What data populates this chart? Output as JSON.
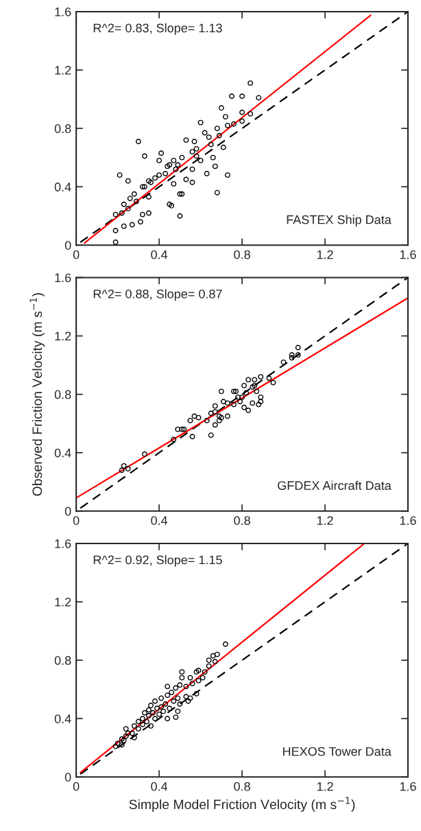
{
  "chart_data": [
    {
      "type": "scatter",
      "annotations": [
        "R^2= 0.83, Slope= 1.13",
        "FASTEX Ship Data"
      ],
      "xlim": [
        0,
        1.6
      ],
      "ylim": [
        0,
        1.6
      ],
      "xticks": [
        0,
        0.4,
        0.8,
        1.2,
        1.6
      ],
      "yticks": [
        0,
        0.4,
        0.8,
        1.2,
        1.6
      ],
      "grid": false,
      "legend": false,
      "series": [
        {
          "marker": "circle",
          "color": "#000000",
          "x": [
            0.84,
            0.75,
            0.8,
            0.88,
            0.7,
            0.8,
            0.84,
            0.6,
            0.72,
            0.8,
            0.3,
            0.68,
            0.62,
            0.71,
            0.53,
            0.57,
            0.33,
            0.41,
            0.4,
            0.47,
            0.51,
            0.6,
            0.66,
            0.67,
            0.73,
            0.68,
            0.63,
            0.56,
            0.56,
            0.53,
            0.47,
            0.44,
            0.51,
            0.5,
            0.45,
            0.46,
            0.5,
            0.21,
            0.25,
            0.4,
            0.38,
            0.35,
            0.32,
            0.28,
            0.35,
            0.29,
            0.26,
            0.23,
            0.35,
            0.32,
            0.31,
            0.27,
            0.23,
            0.19,
            0.19,
            0.19,
            0.22,
            0.25,
            0.33,
            0.36,
            0.43,
            0.45,
            0.48,
            0.56,
            0.58,
            0.65,
            0.69,
            0.73,
            0.76,
            0.58,
            0.64,
            0.49
          ],
          "values": [
            1.11,
            1.02,
            1.02,
            1.01,
            0.94,
            0.91,
            0.9,
            0.84,
            0.88,
            0.85,
            0.71,
            0.8,
            0.77,
            0.67,
            0.72,
            0.71,
            0.61,
            0.63,
            0.58,
            0.58,
            0.6,
            0.58,
            0.6,
            0.54,
            0.48,
            0.36,
            0.49,
            0.52,
            0.43,
            0.45,
            0.42,
            0.54,
            0.35,
            0.35,
            0.28,
            0.27,
            0.2,
            0.48,
            0.44,
            0.48,
            0.46,
            0.44,
            0.4,
            0.35,
            0.33,
            0.3,
            0.32,
            0.28,
            0.22,
            0.21,
            0.16,
            0.14,
            0.13,
            0.1,
            0.02,
            0.21,
            0.22,
            0.25,
            0.4,
            0.43,
            0.49,
            0.55,
            0.52,
            0.64,
            0.66,
            0.69,
            0.75,
            0.82,
            0.83,
            0.61,
            0.74,
            0.55
          ]
        },
        {
          "type": "line",
          "line_style": "dashed",
          "color": "#000000",
          "x": [
            0.02,
            1.6
          ],
          "values": [
            0.02,
            1.6
          ]
        },
        {
          "type": "line",
          "line_style": "solid",
          "color": "#ff0000",
          "x": [
            0.04,
            1.42
          ],
          "values": [
            0.015,
            1.575
          ]
        }
      ]
    },
    {
      "type": "scatter",
      "annotations": [
        "R^2= 0.88, Slope= 0.87",
        "GFDEX Aircraft Data"
      ],
      "ylabel": "Observed Friction Velocity (m s$^{−1}$)",
      "xlim": [
        0,
        1.6
      ],
      "ylim": [
        0,
        1.6
      ],
      "xticks": [
        0,
        0.4,
        0.8,
        1.2,
        1.6
      ],
      "yticks": [
        0,
        0.4,
        0.8,
        1.2,
        1.6
      ],
      "grid": false,
      "legend": false,
      "series": [
        {
          "marker": "circle",
          "color": "#000000",
          "x": [
            1.07,
            1.04,
            1.07,
            1.04,
            1.0,
            0.93,
            0.95,
            0.89,
            0.83,
            0.86,
            0.81,
            0.85,
            0.87,
            0.89,
            0.89,
            0.88,
            0.85,
            0.83,
            0.81,
            0.78,
            0.77,
            0.76,
            0.7,
            0.76,
            0.71,
            0.73,
            0.67,
            0.67,
            0.65,
            0.69,
            0.7,
            0.73,
            0.69,
            0.63,
            0.67,
            0.65,
            0.59,
            0.57,
            0.55,
            0.56,
            0.49,
            0.51,
            0.52,
            0.47,
            0.33,
            0.25,
            0.23,
            0.8,
            0.82,
            0.86,
            0.79,
            0.22
          ],
          "values": [
            1.12,
            1.07,
            1.07,
            1.05,
            1.02,
            0.91,
            0.88,
            0.92,
            0.9,
            0.9,
            0.86,
            0.85,
            0.82,
            0.78,
            0.75,
            0.73,
            0.74,
            0.69,
            0.71,
            0.78,
            0.82,
            0.82,
            0.82,
            0.73,
            0.75,
            0.74,
            0.72,
            0.68,
            0.67,
            0.65,
            0.64,
            0.65,
            0.62,
            0.62,
            0.59,
            0.52,
            0.64,
            0.65,
            0.62,
            0.51,
            0.56,
            0.56,
            0.56,
            0.49,
            0.39,
            0.29,
            0.31,
            0.78,
            0.81,
            0.86,
            0.75,
            0.28
          ]
        },
        {
          "type": "line",
          "line_style": "dashed",
          "color": "#000000",
          "x": [
            0.02,
            1.6
          ],
          "values": [
            0.02,
            1.6
          ]
        },
        {
          "type": "line",
          "line_style": "solid",
          "color": "#ff0000",
          "x": [
            0,
            1.6
          ],
          "values": [
            0.09,
            1.46
          ]
        }
      ]
    },
    {
      "type": "scatter",
      "annotations": [
        "R^2= 0.92, Slope= 1.15",
        "HEXOS Tower Data"
      ],
      "xlabel": "Simple Model Friction Velocity (m s$^{−1}$)",
      "xlim": [
        0,
        1.6
      ],
      "ylim": [
        0,
        1.6
      ],
      "xticks": [
        0,
        0.4,
        0.8,
        1.2,
        1.6
      ],
      "yticks": [
        0,
        0.4,
        0.8,
        1.2,
        1.6
      ],
      "grid": false,
      "legend": false,
      "series": [
        {
          "marker": "circle",
          "color": "#000000",
          "x": [
            0.72,
            0.68,
            0.66,
            0.64,
            0.67,
            0.64,
            0.62,
            0.61,
            0.59,
            0.58,
            0.59,
            0.58,
            0.55,
            0.54,
            0.51,
            0.51,
            0.55,
            0.56,
            0.53,
            0.5,
            0.48,
            0.44,
            0.46,
            0.41,
            0.38,
            0.36,
            0.49,
            0.53,
            0.44,
            0.19,
            0.2,
            0.22,
            0.22,
            0.23,
            0.24,
            0.25,
            0.24,
            0.27,
            0.28,
            0.28,
            0.3,
            0.3,
            0.32,
            0.32,
            0.33,
            0.34,
            0.35,
            0.35,
            0.36,
            0.37,
            0.38,
            0.39,
            0.4,
            0.41,
            0.42,
            0.43,
            0.44,
            0.45,
            0.47,
            0.48,
            0.49,
            0.5
          ],
          "values": [
            0.91,
            0.84,
            0.83,
            0.8,
            0.79,
            0.76,
            0.72,
            0.68,
            0.73,
            0.72,
            0.66,
            0.57,
            0.54,
            0.52,
            0.72,
            0.68,
            0.68,
            0.64,
            0.62,
            0.63,
            0.61,
            0.62,
            0.58,
            0.54,
            0.52,
            0.49,
            0.54,
            0.55,
            0.56,
            0.21,
            0.23,
            0.22,
            0.26,
            0.25,
            0.28,
            0.3,
            0.33,
            0.3,
            0.27,
            0.35,
            0.33,
            0.38,
            0.36,
            0.4,
            0.44,
            0.38,
            0.42,
            0.46,
            0.35,
            0.44,
            0.4,
            0.47,
            0.43,
            0.48,
            0.45,
            0.5,
            0.4,
            0.47,
            0.52,
            0.41,
            0.45,
            0.5
          ]
        },
        {
          "type": "line",
          "line_style": "dashed",
          "color": "#000000",
          "x": [
            0.02,
            1.6
          ],
          "values": [
            0.02,
            1.6
          ]
        },
        {
          "type": "line",
          "line_style": "solid",
          "color": "#ff0000",
          "x": [
            0.02,
            1.39
          ],
          "values": [
            0.03,
            1.6
          ]
        }
      ]
    }
  ]
}
